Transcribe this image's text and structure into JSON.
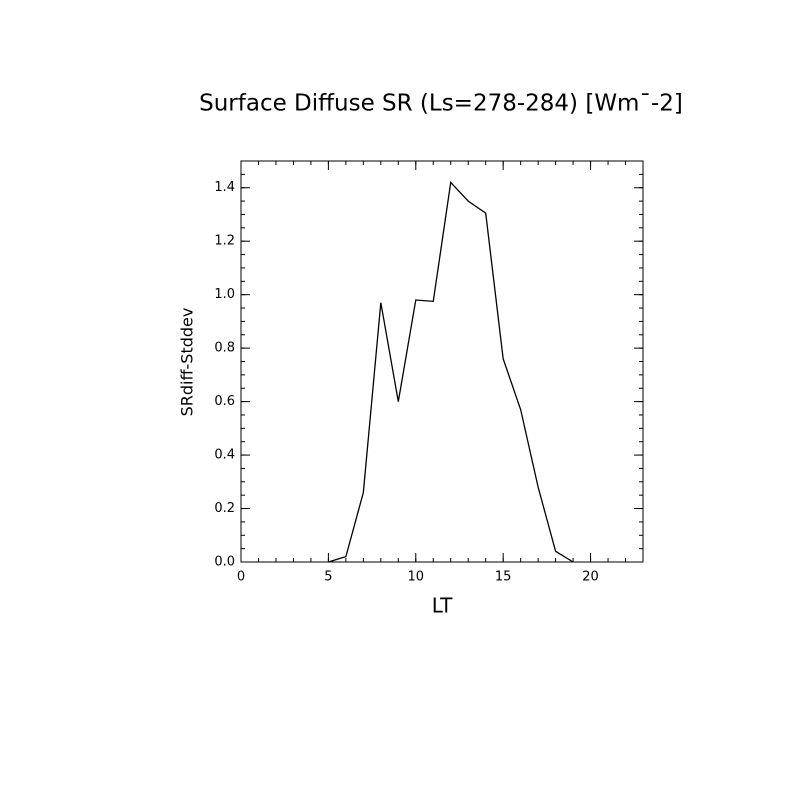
{
  "chart_data": {
    "type": "line",
    "title": "Surface Diffuse SR (Ls=278-284) [Wm¯-2]",
    "xlabel": "LT",
    "ylabel": "SRdiff-Stddev",
    "x": [
      5,
      6,
      7,
      8,
      9,
      10,
      11,
      12,
      13,
      14,
      15,
      16,
      17,
      18,
      19
    ],
    "series": [
      {
        "color": "#000000",
        "values": [
          0,
          0.02,
          0.26,
          0.97,
          0.6,
          0.98,
          0.975,
          1.42,
          1.35,
          1.305,
          0.76,
          0.57,
          0.28,
          0.04,
          0
        ]
      }
    ],
    "xlim": [
      0,
      23
    ],
    "xticks": [
      0,
      5,
      10,
      15,
      20
    ],
    "ylim": [
      0,
      1.5
    ],
    "yticks": [
      {
        "value": 0,
        "label": "0.0"
      },
      0.2,
      0.4,
      0.6,
      0.8,
      {
        "value": 1,
        "label": "1.0"
      },
      1.2,
      1.4
    ]
  }
}
